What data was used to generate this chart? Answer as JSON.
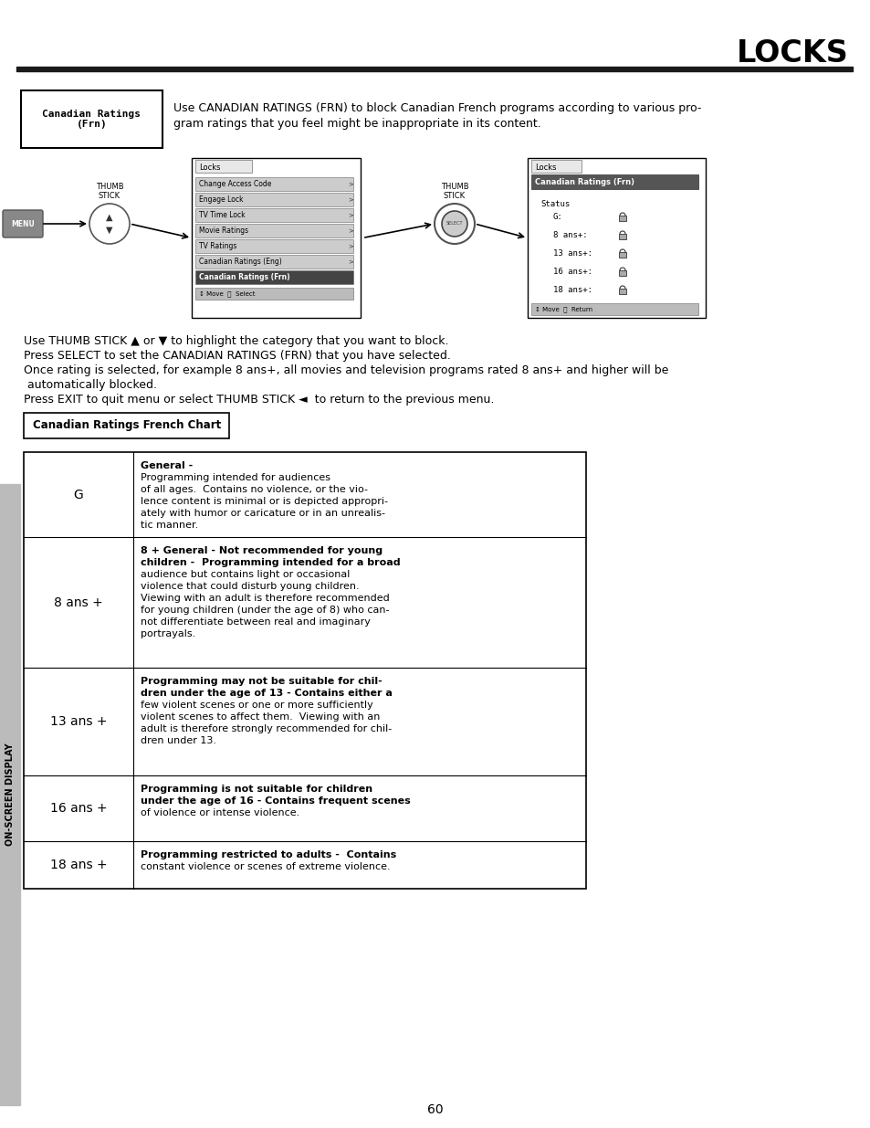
{
  "title": "LOCKS",
  "page_num": "60",
  "sidebar_text": "ON-SCREEN DISPLAY",
  "section_box_label": "Canadian Ratings\n(Frn)",
  "intro_text_line1": "Use CANADIAN RATINGS (FRN) to block Canadian French programs according to various pro-",
  "intro_text_line2": "gram ratings that you feel might be inappropriate in its content.",
  "instructions": [
    "Use THUMB STICK ▲ or ▼ to highlight the category that you want to block.",
    "Press SELECT to set the CANADIAN RATINGS (FRN) that you have selected.",
    "Once rating is selected, for example 8 ans+, all movies and television programs rated 8 ans+ and higher will be",
    " automatically blocked.",
    "Press EXIT to quit menu or select THUMB STICK ◄  to return to the previous menu."
  ],
  "chart_label_box": "Canadian Ratings French Chart",
  "chart_rows": [
    {
      "rating": "G",
      "bold_text": "General - ",
      "rest_text": "Programming intended for audiences\nof all ages.  Contains no violence, or the vio-\nlence content is minimal or is depicted appropri-\nately with humor or caricature or in an unrealis-\ntic manner."
    },
    {
      "rating": "8 ans +",
      "bold_text": "8 + General - Not recommended for young\nchildren - ",
      "rest_text": "Programming intended for a broad\naudience but contains light or occasional\nviolence that could disturb young children.\nViewing with an adult is therefore recommended\nfor young children (under the age of 8) who can-\nnot differentiate between real and imaginary\nportrayals."
    },
    {
      "rating": "13 ans +",
      "bold_text": "Programming may not be suitable for chil-\ndren under the age of 13 - ",
      "rest_text": "Contains either a\nfew violent scenes or one or more sufficiently\nviolent scenes to affect them.  Viewing with an\nadult is therefore strongly recommended for chil-\ndren under 13."
    },
    {
      "rating": "16 ans +",
      "bold_text": "Programming is not suitable for children\nunder the age of 16 - ",
      "rest_text": "Contains frequent scenes\nof violence or intense violence."
    },
    {
      "rating": "18 ans +",
      "bold_text": "Programming restricted to adults - ",
      "rest_text": "Contains\nconstant violence or scenes of extreme violence."
    }
  ],
  "menu1_title": "Locks",
  "menu1_items": [
    "Change Access Code",
    "Engage Lock",
    "TV Time Lock",
    "Movie Ratings",
    "TV Ratings",
    "Canadian Ratings (Eng)",
    "Canadian Ratings (Frn)"
  ],
  "menu1_selected": 6,
  "menu1_footer": "↕ Move  Ⓢ  Select",
  "menu2_title": "Locks",
  "menu2_header": "Canadian Ratings (Frn)",
  "menu2_items": [
    "G:",
    "8 ans+:",
    "13 ans+:",
    "16 ans+:",
    "18 ans+:"
  ],
  "menu2_footer": "↕ Move  Ⓢ  Return",
  "bg_color": "#ffffff",
  "text_color": "#000000"
}
